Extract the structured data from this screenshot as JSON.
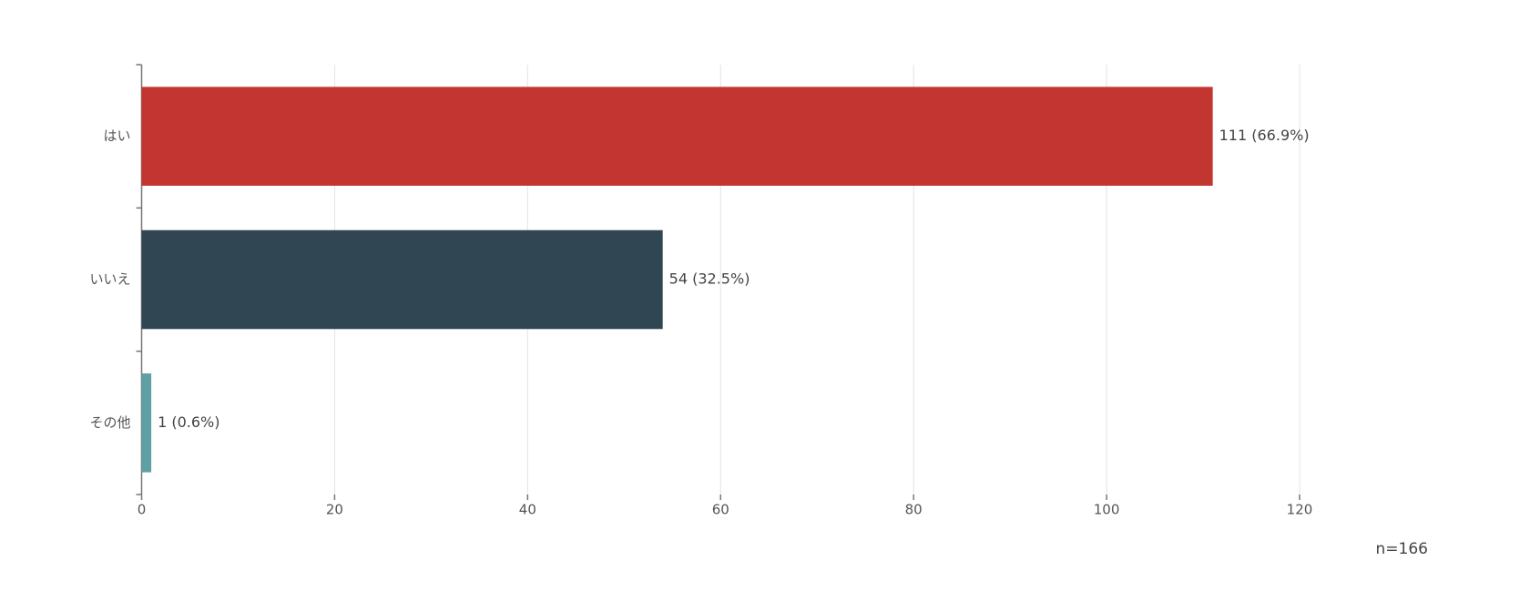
{
  "chart_data": {
    "type": "hbar",
    "categories": [
      "はい",
      "いいえ",
      "その他"
    ],
    "values": [
      111,
      54,
      1
    ],
    "value_labels": [
      "111 (66.9%)",
      "54 (32.5%)",
      "1 (0.6%)"
    ],
    "colors": [
      "#c33531",
      "#314653",
      "#5fa0a5"
    ],
    "xlim": [
      0,
      120
    ],
    "xticks": [
      0,
      20,
      40,
      60,
      80,
      100,
      120
    ],
    "grid": true,
    "annotation": "n=166"
  }
}
